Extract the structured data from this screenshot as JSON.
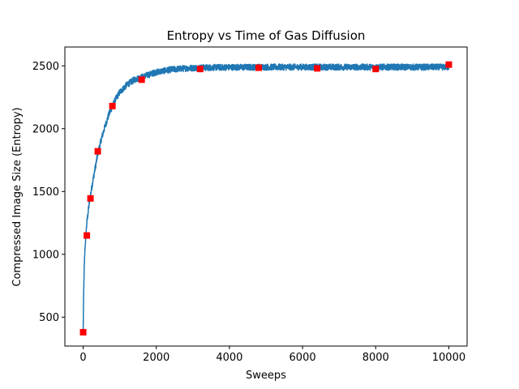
{
  "chart_data": {
    "type": "line",
    "title": "Entropy vs Time of Gas Diffusion",
    "xlabel": "Sweeps",
    "ylabel": "Compressed Image Size (Entropy)",
    "xlim": [
      -500,
      10500
    ],
    "ylim": [
      270,
      2650
    ],
    "x_ticks": [
      0,
      2000,
      4000,
      6000,
      8000,
      10000
    ],
    "y_ticks": [
      500,
      1000,
      1500,
      2000,
      2500
    ],
    "grid": false,
    "series": [
      {
        "kind": "line",
        "color": "#1f77b4",
        "x": [
          0,
          10,
          25,
          50,
          75,
          100,
          150,
          200,
          250,
          300,
          400,
          500,
          600,
          700,
          800,
          900,
          1000,
          1200,
          1400,
          1600,
          1800,
          2000,
          2200,
          2400,
          2600,
          2800,
          3000,
          3200,
          3400,
          3600,
          3800,
          4000,
          4500,
          5000,
          5500,
          6000,
          6500,
          7000,
          7500,
          8000,
          8500,
          9000,
          9500,
          10000
        ],
        "values": [
          380,
          620,
          850,
          1050,
          1150,
          1250,
          1370,
          1470,
          1560,
          1640,
          1800,
          1920,
          2020,
          2110,
          2180,
          2240,
          2290,
          2350,
          2390,
          2410,
          2430,
          2450,
          2460,
          2470,
          2475,
          2480,
          2483,
          2485,
          2486,
          2487,
          2488,
          2489,
          2489,
          2490,
          2490,
          2490,
          2490,
          2490,
          2490,
          2490,
          2490,
          2490,
          2490,
          2490
        ],
        "noise_band": 25
      },
      {
        "kind": "markers",
        "color": "#ff0000",
        "marker": "square",
        "x": [
          0,
          100,
          200,
          400,
          800,
          1600,
          3200,
          4800,
          6400,
          8000,
          10000
        ],
        "values": [
          380,
          1150,
          1445,
          1820,
          2180,
          2390,
          2475,
          2485,
          2480,
          2475,
          2510
        ]
      }
    ]
  }
}
